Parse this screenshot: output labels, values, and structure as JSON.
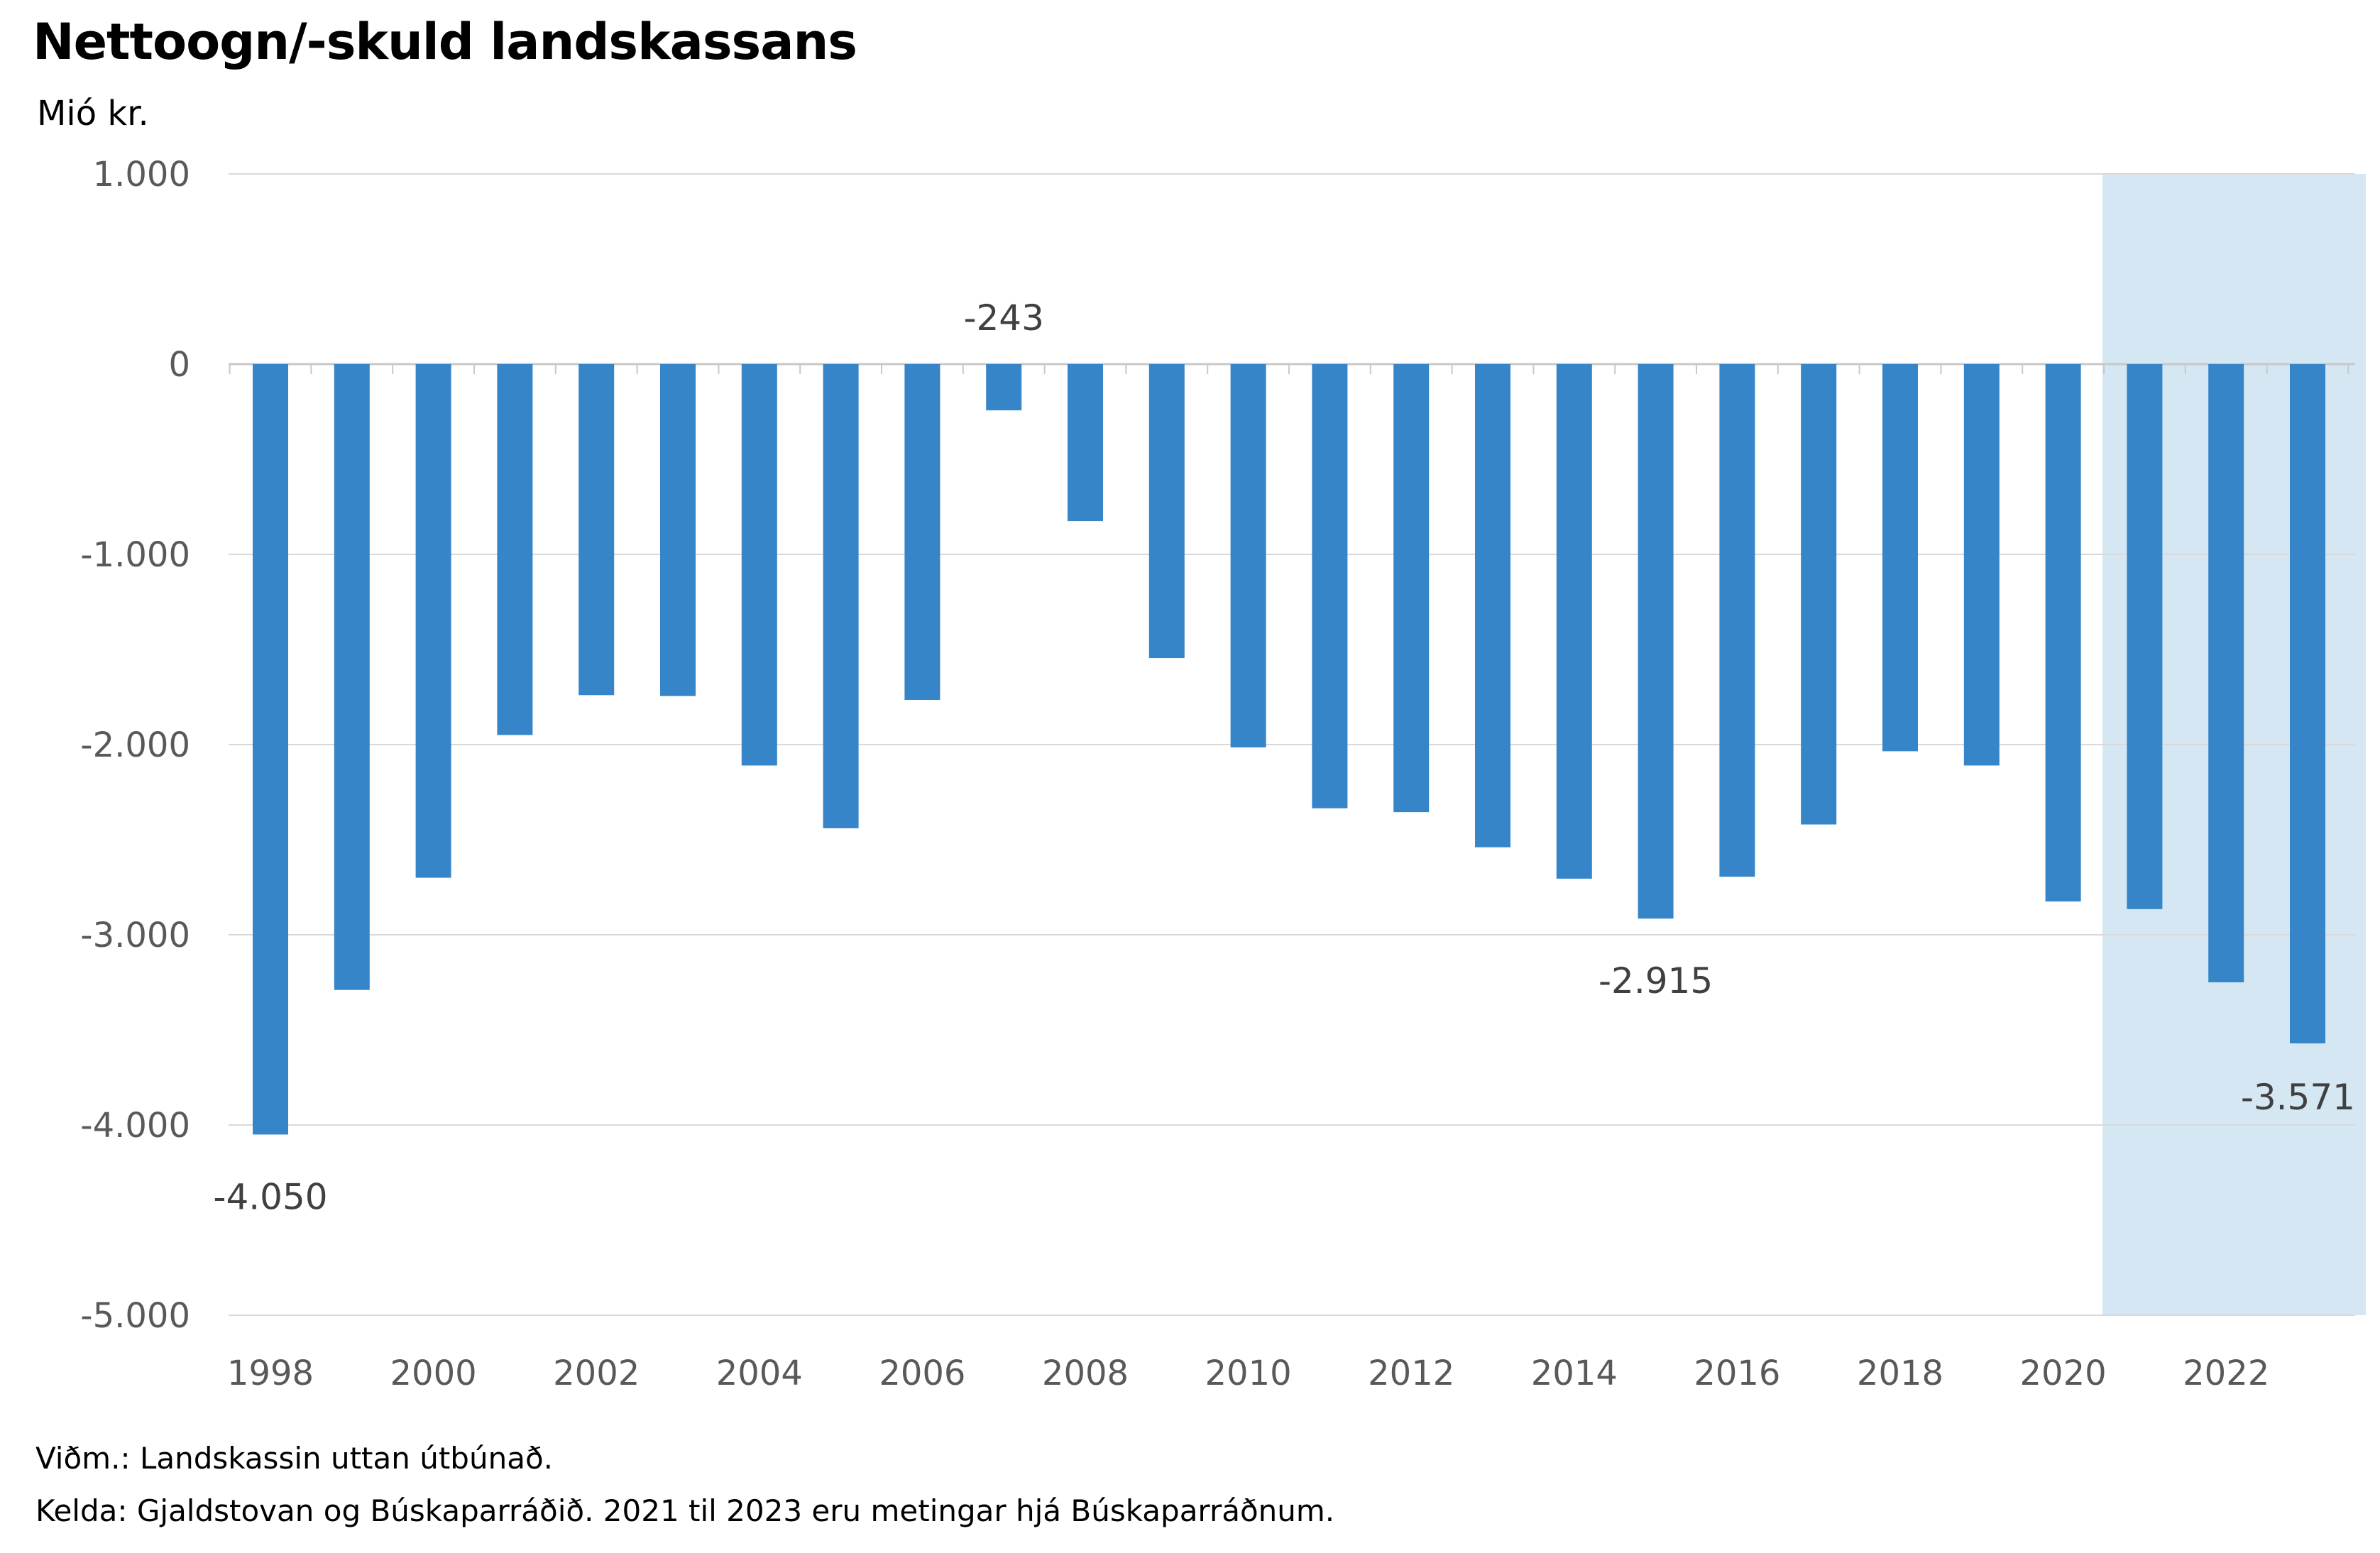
{
  "chart_data": {
    "type": "bar",
    "title": "Nettoogn/-skuld landskassans",
    "ylabel": "Mió kr.",
    "xlabel": "",
    "ylim": [
      -5000,
      1000
    ],
    "yticks": [
      1000,
      0,
      -1000,
      -2000,
      -3000,
      -4000,
      -5000
    ],
    "ytick_labels": [
      "1.000",
      "0",
      "-1.000",
      "-2.000",
      "-3.000",
      "-4.000",
      "-5.000"
    ],
    "x_tick_labels": [
      "1998",
      "2000",
      "2002",
      "2004",
      "2006",
      "2008",
      "2010",
      "2012",
      "2014",
      "2016",
      "2018",
      "2020",
      "2022"
    ],
    "categories": [
      1998,
      1999,
      2000,
      2001,
      2002,
      2003,
      2004,
      2005,
      2006,
      2007,
      2008,
      2009,
      2010,
      2011,
      2012,
      2013,
      2014,
      2015,
      2016,
      2017,
      2018,
      2019,
      2020,
      2021,
      2022,
      2023
    ],
    "values": [
      -4050,
      -3290,
      -2700,
      -1950,
      -1740,
      -1745,
      -2110,
      -2440,
      -1765,
      -243,
      -825,
      -1545,
      -2015,
      -2335,
      -2355,
      -2540,
      -2705,
      -2915,
      -2695,
      -2420,
      -2035,
      -2110,
      -2825,
      -2865,
      -3250,
      -3571
    ],
    "color": "#3585c8",
    "highlight": {
      "from": 2021,
      "to": 2023,
      "color": "#d6e7f4"
    },
    "data_labels": [
      {
        "year": 1998,
        "text": "-4.050"
      },
      {
        "year": 2007,
        "text": "-243"
      },
      {
        "year": 2015,
        "text": "-2.915"
      },
      {
        "year": 2023,
        "text": "-3.571"
      }
    ],
    "grid": true,
    "legend": "none"
  },
  "notes": {
    "line1": "Viðm.: Landskassin uttan útbúnað.",
    "line2": "Kelda: Gjaldstovan og Búskaparráðið. 2021 til 2023 eru metingar hjá Búskaparráðnum."
  }
}
